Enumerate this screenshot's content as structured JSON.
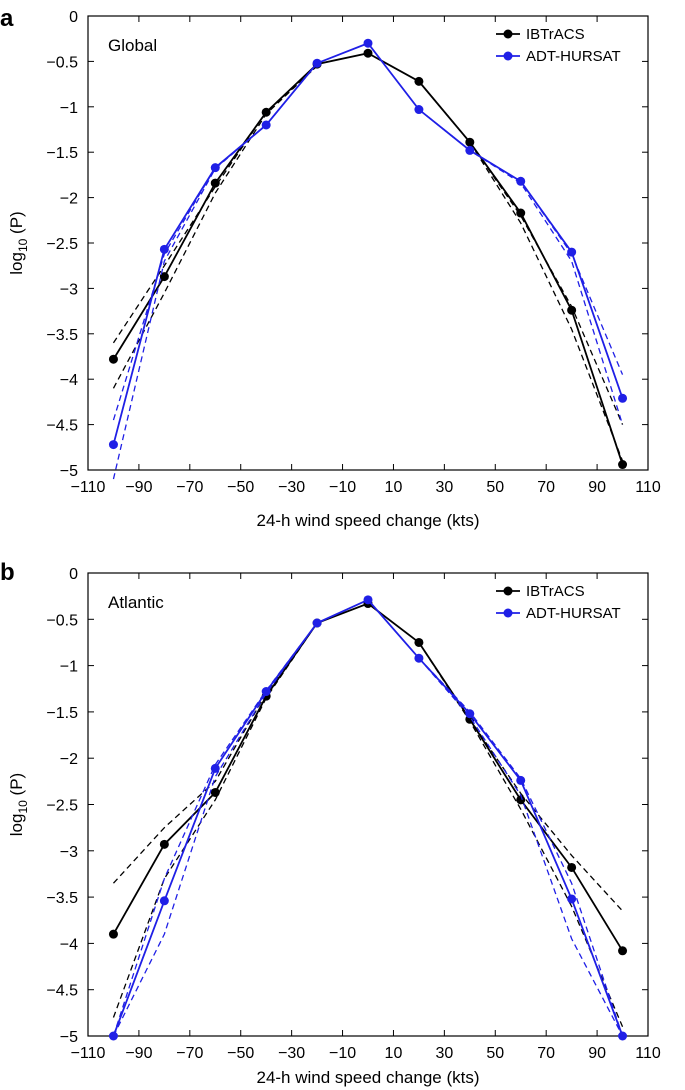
{
  "chart_data": [
    {
      "type": "line",
      "panel": "a",
      "region_label": "Global",
      "xlabel": "24-h wind speed change (kts)",
      "ylabel_base": "log",
      "ylabel_sub": "10",
      "ylabel_arg": " (P)",
      "xlim": [
        -110,
        110
      ],
      "ylim": [
        -5,
        0
      ],
      "xticks": [
        -110,
        -90,
        -70,
        -50,
        -30,
        -10,
        10,
        30,
        50,
        70,
        90,
        110
      ],
      "xtick_labels": [
        "−110",
        "−90",
        "−70",
        "−50",
        "−30",
        "−10",
        "10",
        "30",
        "50",
        "70",
        "90",
        "110"
      ],
      "yticks": [
        0,
        -0.5,
        -1,
        -1.5,
        -2,
        -2.5,
        -3,
        -3.5,
        -4,
        -4.5,
        -5
      ],
      "ytick_labels": [
        "0",
        "−0.5",
        "−1",
        "−1.5",
        "−2",
        "−2.5",
        "−3",
        "−3.5",
        "−4",
        "−4.5",
        "−5"
      ],
      "legend_position": "top-right",
      "series": [
        {
          "name": "IBTrACS",
          "color": "#000000",
          "x": [
            -100,
            -80,
            -60,
            -40,
            -20,
            0,
            20,
            40,
            60,
            80,
            100
          ],
          "y": [
            -3.78,
            -2.87,
            -1.84,
            -1.06,
            -0.53,
            -0.41,
            -0.72,
            -1.39,
            -2.17,
            -3.24,
            -4.94
          ],
          "fits": [
            {
              "x": [
                -100,
                -80,
                -60,
                -40,
                -20
              ],
              "y": [
                -3.6,
                -2.75,
                -1.88,
                -1.06,
                -0.55
              ]
            },
            {
              "x": [
                -100,
                -80,
                -60,
                -40,
                -20
              ],
              "y": [
                -4.1,
                -3.05,
                -1.95,
                -1.08,
                -0.55
              ]
            },
            {
              "x": [
                20,
                40,
                60,
                80,
                100
              ],
              "y": [
                -0.72,
                -1.39,
                -2.2,
                -3.2,
                -4.5
              ]
            },
            {
              "x": [
                20,
                40,
                60,
                80,
                100
              ],
              "y": [
                -0.72,
                -1.39,
                -2.28,
                -3.45,
                -4.9
              ]
            }
          ]
        },
        {
          "name": "ADT-HURSAT",
          "color": "#1f1fe6",
          "x": [
            -100,
            -80,
            -60,
            -40,
            -20,
            0,
            20,
            40,
            60,
            80,
            100
          ],
          "y": [
            -4.72,
            -2.57,
            -1.67,
            -1.2,
            -0.52,
            -0.3,
            -1.03,
            -1.48,
            -1.82,
            -2.6,
            -4.21
          ],
          "fits": [
            {
              "x": [
                -100,
                -80,
                -60,
                -40,
                -20
              ],
              "y": [
                -4.45,
                -2.62,
                -1.67,
                -1.2,
                -0.52
              ]
            },
            {
              "x": [
                -100,
                -80,
                -60,
                -40,
                -20
              ],
              "y": [
                -5.1,
                -2.7,
                -1.68,
                -1.2,
                -0.52
              ]
            },
            {
              "x": [
                20,
                40,
                60,
                80,
                100
              ],
              "y": [
                -1.03,
                -1.48,
                -1.82,
                -2.62,
                -3.95
              ]
            },
            {
              "x": [
                20,
                40,
                60,
                80,
                100
              ],
              "y": [
                -1.03,
                -1.48,
                -1.84,
                -2.7,
                -4.5
              ]
            }
          ]
        }
      ]
    },
    {
      "type": "line",
      "panel": "b",
      "region_label": "Atlantic",
      "xlabel": "24-h wind speed change (kts)",
      "ylabel_base": "log",
      "ylabel_sub": "10",
      "ylabel_arg": " (P)",
      "xlim": [
        -110,
        110
      ],
      "ylim": [
        -5,
        0
      ],
      "xticks": [
        -110,
        -90,
        -70,
        -50,
        -30,
        -10,
        10,
        30,
        50,
        70,
        90,
        110
      ],
      "xtick_labels": [
        "−110",
        "−90",
        "−70",
        "−50",
        "−30",
        "−10",
        "10",
        "30",
        "50",
        "70",
        "90",
        "110"
      ],
      "yticks": [
        0,
        -0.5,
        -1,
        -1.5,
        -2,
        -2.5,
        -3,
        -3.5,
        -4,
        -4.5,
        -5
      ],
      "ytick_labels": [
        "0",
        "−0.5",
        "−1",
        "−1.5",
        "−2",
        "−2.5",
        "−3",
        "−3.5",
        "−4",
        "−4.5",
        "−5"
      ],
      "legend_position": "top-right",
      "series": [
        {
          "name": "IBTrACS",
          "color": "#000000",
          "x": [
            -100,
            -80,
            -60,
            -40,
            -20,
            0,
            20,
            40,
            60,
            80,
            100
          ],
          "y": [
            -3.9,
            -2.93,
            -2.37,
            -1.33,
            -0.54,
            -0.33,
            -0.75,
            -1.58,
            -2.45,
            -3.18,
            -4.08
          ],
          "fits": [
            {
              "x": [
                -100,
                -80,
                -60,
                -40,
                -20
              ],
              "y": [
                -3.35,
                -2.75,
                -2.25,
                -1.3,
                -0.54
              ]
            },
            {
              "x": [
                -100,
                -80,
                -60,
                -40,
                -20
              ],
              "y": [
                -4.8,
                -3.3,
                -2.45,
                -1.35,
                -0.54
              ]
            },
            {
              "x": [
                20,
                40,
                60,
                80,
                100
              ],
              "y": [
                -0.75,
                -1.58,
                -2.38,
                -3.05,
                -3.65
              ]
            },
            {
              "x": [
                20,
                40,
                60,
                80,
                100
              ],
              "y": [
                -0.75,
                -1.6,
                -2.55,
                -3.6,
                -4.9
              ]
            }
          ]
        },
        {
          "name": "ADT-HURSAT",
          "color": "#1f1fe6",
          "x": [
            -100,
            -80,
            -60,
            -40,
            -20,
            0,
            20,
            40,
            60,
            80,
            100
          ],
          "y": [
            -5.0,
            -3.54,
            -2.11,
            -1.28,
            -0.54,
            -0.29,
            -0.92,
            -1.52,
            -2.24,
            -3.52,
            -5.0
          ],
          "fits": [
            {
              "x": [
                -100,
                -80,
                -60,
                -40,
                -20
              ],
              "y": [
                -5.0,
                -3.3,
                -2.07,
                -1.27,
                -0.54
              ]
            },
            {
              "x": [
                -100,
                -80,
                -60,
                -40,
                -20
              ],
              "y": [
                -5.0,
                -3.9,
                -2.2,
                -1.3,
                -0.54
              ]
            },
            {
              "x": [
                20,
                40,
                60,
                80,
                100
              ],
              "y": [
                -0.92,
                -1.5,
                -2.22,
                -3.35,
                -5.0
              ]
            },
            {
              "x": [
                20,
                40,
                60,
                80,
                100
              ],
              "y": [
                -0.92,
                -1.55,
                -2.4,
                -3.95,
                -5.0
              ]
            }
          ]
        }
      ]
    }
  ]
}
